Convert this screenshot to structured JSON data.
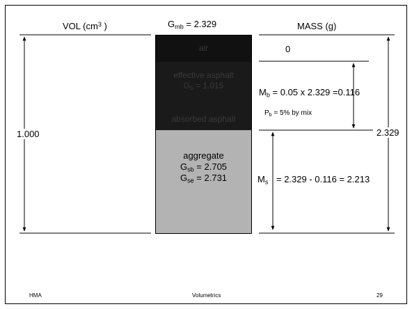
{
  "header": {
    "vol_label": "VOL (cm",
    "vol_sup": "3",
    "vol_close": " )",
    "gmb_base": "G",
    "gmb_sub": "mb",
    "gmb_value": " = 2.329",
    "mass_label": "MASS (g)"
  },
  "blocks": {
    "air": "air",
    "eff_asphalt": "effective asphalt",
    "gb_base": "G",
    "gb_sub": "b",
    "gb_value": " = 1.015",
    "abs_asphalt": "absorbed asphalt",
    "aggregate": "aggregate",
    "gsb_base": "G",
    "gsb_sub": "sb",
    "gsb_value": " = 2.705",
    "gse_base": "G",
    "gse_sub": "se",
    "gse_value": " = 2.731"
  },
  "volume": {
    "total": "1.000"
  },
  "mass": {
    "air_mass": "0",
    "mb_base": "M",
    "mb_sub": "b",
    "mb_value": " = 0.05 x 2.329 =0.116",
    "pb_base": "P",
    "pb_sub": "b",
    "pb_value": " = 5% by mix",
    "total": "2.329",
    "ms_base": "M",
    "ms_sub": "s",
    "ms_value": "= 2.329 - 0.116 = 2.213"
  },
  "footer": {
    "left": "HMA",
    "center": "Volumetrics",
    "page": "29"
  },
  "colors": {
    "block_dark": "#1a1a1a",
    "block_air": "#111111",
    "block_aggregate": "#b3b3b3"
  }
}
